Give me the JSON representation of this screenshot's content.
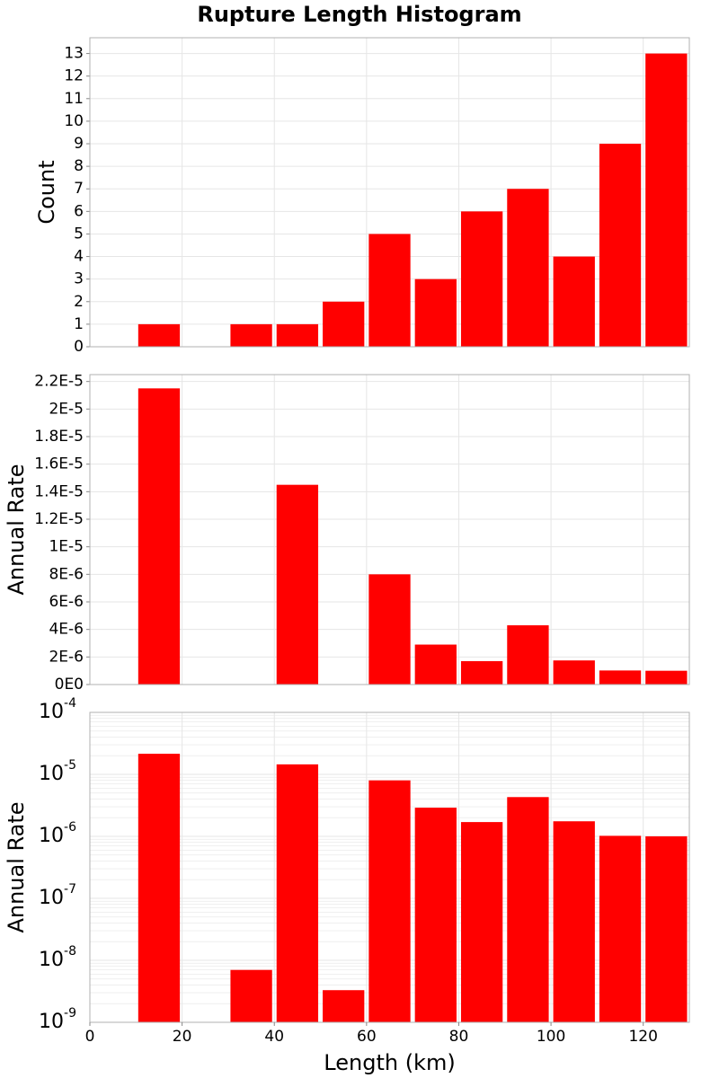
{
  "title": "Rupture Length Histogram",
  "bar_color": "#ff0000",
  "grid_color": "#e6e6e6",
  "chart_data": [
    {
      "type": "bar",
      "title": "Rupture Length Histogram",
      "ylabel": "Count",
      "xlabel": "",
      "bin_width": 10,
      "x": [
        15,
        35,
        45,
        55,
        65,
        75,
        85,
        95,
        105,
        115,
        125
      ],
      "values": [
        1,
        1,
        1,
        2,
        5,
        3,
        6,
        7,
        4,
        9,
        13
      ],
      "xlim": [
        0,
        130
      ],
      "ylim": [
        0,
        13.7
      ],
      "yticks": [
        0,
        1,
        2,
        3,
        4,
        5,
        6,
        7,
        8,
        9,
        10,
        11,
        12,
        13
      ],
      "ytick_labels": [
        "0",
        "1",
        "2",
        "3",
        "4",
        "5",
        "6",
        "7",
        "8",
        "9",
        "10",
        "11",
        "12",
        "13"
      ],
      "grid": true
    },
    {
      "type": "bar",
      "ylabel": "Annual Rate",
      "xlabel": "",
      "bin_width": 10,
      "x": [
        15,
        35,
        45,
        55,
        65,
        75,
        85,
        95,
        105,
        115,
        125
      ],
      "values": [
        2.15e-05,
        7e-09,
        1.45e-05,
        3.3e-09,
        8e-06,
        2.9e-06,
        1.7e-06,
        4.3e-06,
        1.75e-06,
        1.02e-06,
        1e-06
      ],
      "xlim": [
        0,
        130
      ],
      "ylim": [
        0,
        2.25e-05
      ],
      "yticks": [
        0,
        2e-06,
        4e-06,
        6e-06,
        8e-06,
        1e-05,
        1.2e-05,
        1.4e-05,
        1.6e-05,
        1.8e-05,
        2e-05,
        2.2e-05
      ],
      "ytick_labels": [
        "0E0",
        "2E-6",
        "4E-6",
        "6E-6",
        "8E-6",
        "1E-5",
        "1.2E-5",
        "1.4E-5",
        "1.6E-5",
        "1.8E-5",
        "2E-5",
        "2.2E-5"
      ],
      "grid": true
    },
    {
      "type": "bar",
      "ylabel": "Annual Rate",
      "xlabel": "Length (km)",
      "log_y": true,
      "bin_width": 10,
      "x": [
        15,
        35,
        45,
        55,
        65,
        75,
        85,
        95,
        105,
        115,
        125
      ],
      "values": [
        2.15e-05,
        7e-09,
        1.45e-05,
        3.3e-09,
        8e-06,
        2.9e-06,
        1.7e-06,
        4.3e-06,
        1.75e-06,
        1.02e-06,
        1e-06
      ],
      "xlim": [
        0,
        130
      ],
      "ylim": [
        1e-09,
        0.0001
      ],
      "yticks_exponents": [
        -9,
        -8,
        -7,
        -6,
        -5,
        -4
      ],
      "ytick_base": "10",
      "xticks": [
        0,
        20,
        40,
        60,
        80,
        100,
        120
      ],
      "xtick_labels": [
        "0",
        "20",
        "40",
        "60",
        "80",
        "100",
        "120"
      ],
      "grid": true
    }
  ]
}
